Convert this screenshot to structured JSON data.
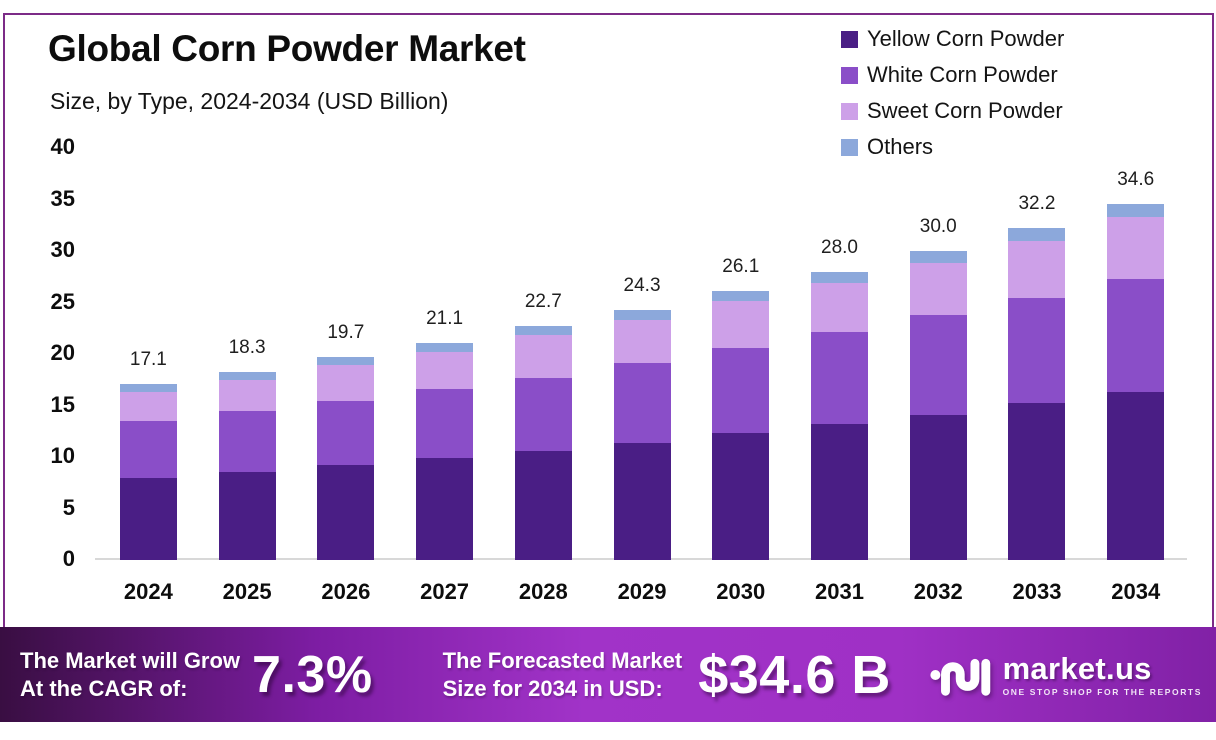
{
  "frame": {
    "border_color": "#7c2b87"
  },
  "header": {
    "title": "Global Corn Powder Market",
    "subtitle": "Size, by Type, 2024-2034 (USD Billion)"
  },
  "chart_data": {
    "type": "bar",
    "stacked": true,
    "title": "Global Corn Powder Market",
    "subtitle": "Size, by Type, 2024-2034 (USD Billion)",
    "xlabel": "",
    "ylabel": "",
    "ylim": [
      0,
      40
    ],
    "yticks": [
      0,
      5,
      10,
      15,
      20,
      25,
      30,
      35,
      40
    ],
    "grid": false,
    "legend_position": "top-right",
    "categories": [
      "2024",
      "2025",
      "2026",
      "2027",
      "2028",
      "2029",
      "2030",
      "2031",
      "2032",
      "2033",
      "2034"
    ],
    "series": [
      {
        "name": "Yellow Corn Powder",
        "color": "#4a1e85",
        "values": [
          8.0,
          8.5,
          9.2,
          9.9,
          10.6,
          11.4,
          12.3,
          13.2,
          14.1,
          15.2,
          16.3
        ]
      },
      {
        "name": "White Corn Powder",
        "color": "#8a4ec8",
        "values": [
          5.5,
          6.0,
          6.2,
          6.7,
          7.1,
          7.7,
          8.3,
          8.9,
          9.7,
          10.2,
          11.0
        ]
      },
      {
        "name": "Sweet Corn Powder",
        "color": "#cda0e8",
        "values": [
          2.8,
          3.0,
          3.5,
          3.6,
          4.1,
          4.2,
          4.5,
          4.8,
          5.0,
          5.6,
          6.0
        ]
      },
      {
        "name": "Others",
        "color": "#8ca8db",
        "values": [
          0.8,
          0.8,
          0.8,
          0.9,
          0.9,
          1.0,
          1.0,
          1.1,
          1.2,
          1.2,
          1.3
        ]
      }
    ],
    "totals": [
      17.1,
      18.3,
      19.7,
      21.1,
      22.7,
      24.3,
      26.1,
      28.0,
      30.0,
      32.2,
      34.6
    ],
    "totals_display": [
      "17.1",
      "18.3",
      "19.7",
      "21.1",
      "22.7",
      "24.3",
      "26.1",
      "28.0",
      "30.0",
      "32.2",
      "34.6"
    ]
  },
  "banner": {
    "cagr_label_line1": "The Market will Grow",
    "cagr_label_line2": "At the CAGR of:",
    "cagr_value": "7.3%",
    "forecast_label_line1": "The Forecasted Market",
    "forecast_label_line2": "Size for 2034 in USD:",
    "forecast_value": "$34.6 B",
    "logo_text": "market.us",
    "logo_tagline": "ONE STOP SHOP FOR THE REPORTS",
    "gradient": [
      "#390e42",
      "#a133c8",
      "#8121a6"
    ]
  }
}
